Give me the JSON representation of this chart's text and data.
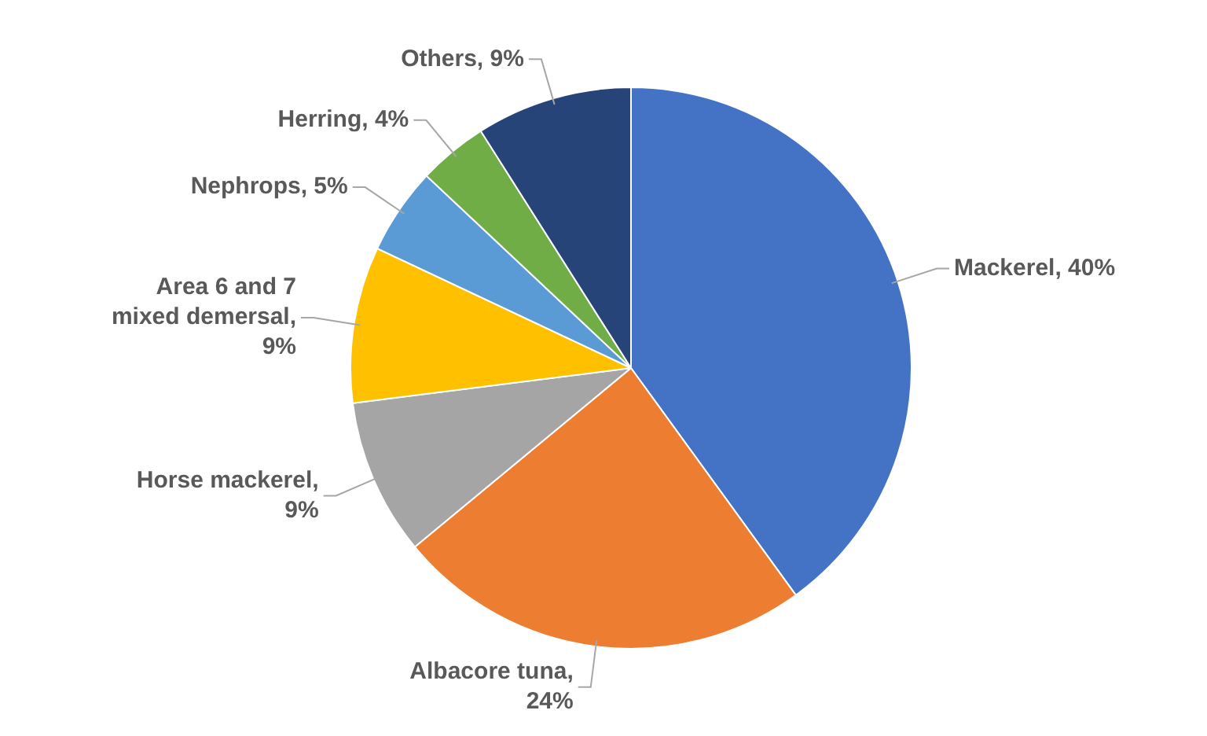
{
  "chart_data": {
    "type": "pie",
    "categories": [
      "Mackerel",
      "Albacore tuna",
      "Horse mackerel",
      "Area 6 and 7 mixed demersal",
      "Nephrops",
      "Herring",
      "Others"
    ],
    "values": [
      40,
      24,
      9,
      9,
      5,
      4,
      9
    ],
    "value_labels": [
      ", 40%",
      ", 24%",
      ", 9%",
      ", 9%",
      ", 5%",
      ", 4%",
      ", 9%"
    ],
    "colors": [
      "#4472c4",
      "#ed7d31",
      "#a5a5a5",
      "#ffc000",
      "#5b9bd5",
      "#70ad47",
      "#264478"
    ],
    "legend": false
  }
}
